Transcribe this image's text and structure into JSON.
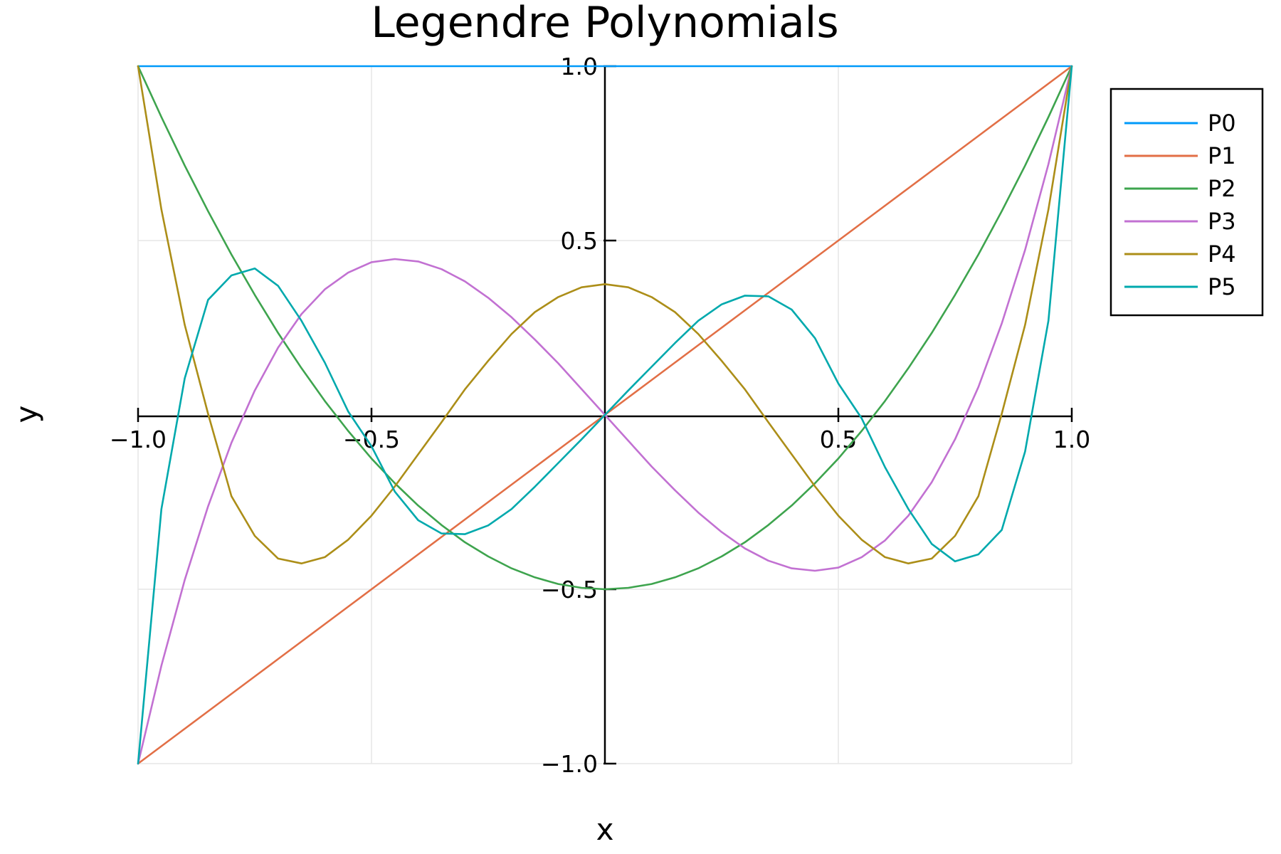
{
  "chart_data": {
    "type": "line",
    "title": "Legendre Polynomials",
    "xlabel": "x",
    "ylabel": "y",
    "xlim": [
      -1.0,
      1.0
    ],
    "ylim": [
      -1.0,
      1.0
    ],
    "x_ticks": [
      "−1.0",
      "−0.5",
      "0.5",
      "1.0"
    ],
    "y_ticks": [
      "1.0",
      "0.5",
      "−0.5",
      "−1.0"
    ],
    "grid": true,
    "legend_position": "top-right",
    "colors": [
      "#009AFA",
      "#E26F46",
      "#3EA44E",
      "#C271D2",
      "#AC8E18",
      "#00A9AD"
    ],
    "x": [
      -1.0,
      -0.95,
      -0.9,
      -0.85,
      -0.8,
      -0.75,
      -0.7,
      -0.65,
      -0.6,
      -0.55,
      -0.5,
      -0.45,
      -0.4,
      -0.35,
      -0.3,
      -0.25,
      -0.2,
      -0.15,
      -0.1,
      -0.05,
      0.0,
      0.05,
      0.1,
      0.15,
      0.2,
      0.25,
      0.3,
      0.35,
      0.4,
      0.45,
      0.5,
      0.55,
      0.6,
      0.65,
      0.7,
      0.75,
      0.8,
      0.85,
      0.9,
      0.95,
      1.0
    ],
    "series": [
      {
        "name": "P0",
        "values": [
          1,
          1,
          1,
          1,
          1,
          1,
          1,
          1,
          1,
          1,
          1,
          1,
          1,
          1,
          1,
          1,
          1,
          1,
          1,
          1,
          1,
          1,
          1,
          1,
          1,
          1,
          1,
          1,
          1,
          1,
          1,
          1,
          1,
          1,
          1,
          1,
          1,
          1,
          1,
          1,
          1
        ]
      },
      {
        "name": "P1",
        "values": [
          -1.0,
          -0.95,
          -0.9,
          -0.85,
          -0.8,
          -0.75,
          -0.7,
          -0.65,
          -0.6,
          -0.55,
          -0.5,
          -0.45,
          -0.4,
          -0.35,
          -0.3,
          -0.25,
          -0.2,
          -0.15,
          -0.1,
          -0.05,
          0.0,
          0.05,
          0.1,
          0.15,
          0.2,
          0.25,
          0.3,
          0.35,
          0.4,
          0.45,
          0.5,
          0.55,
          0.6,
          0.65,
          0.7,
          0.75,
          0.8,
          0.85,
          0.9,
          0.95,
          1.0
        ]
      },
      {
        "name": "P2",
        "values": [
          1.0,
          0.854,
          0.715,
          0.584,
          0.46,
          0.344,
          0.235,
          0.134,
          0.04,
          -0.046,
          -0.125,
          -0.196,
          -0.26,
          -0.316,
          -0.365,
          -0.406,
          -0.44,
          -0.466,
          -0.485,
          -0.496,
          -0.5,
          -0.496,
          -0.485,
          -0.466,
          -0.44,
          -0.406,
          -0.365,
          -0.316,
          -0.26,
          -0.196,
          -0.125,
          -0.046,
          0.04,
          0.134,
          0.235,
          0.344,
          0.46,
          0.584,
          0.715,
          0.854,
          1.0
        ]
      },
      {
        "name": "P3",
        "values": [
          -1.0,
          -0.719,
          -0.473,
          -0.262,
          -0.08,
          0.07,
          0.193,
          0.289,
          0.36,
          0.408,
          0.438,
          0.447,
          0.44,
          0.418,
          0.383,
          0.336,
          0.28,
          0.216,
          0.148,
          0.074,
          0.0,
          -0.074,
          -0.148,
          -0.216,
          -0.28,
          -0.336,
          -0.383,
          -0.418,
          -0.44,
          -0.447,
          -0.438,
          -0.408,
          -0.36,
          -0.289,
          -0.193,
          -0.07,
          0.08,
          0.262,
          0.473,
          0.719,
          1.0
        ]
      },
      {
        "name": "P4",
        "values": [
          1.0,
          0.589,
          0.258,
          0.003,
          -0.233,
          -0.347,
          -0.412,
          -0.426,
          -0.408,
          -0.358,
          -0.289,
          -0.205,
          -0.113,
          -0.021,
          0.073,
          0.155,
          0.232,
          0.295,
          0.338,
          0.366,
          0.375,
          0.366,
          0.338,
          0.295,
          0.232,
          0.155,
          0.073,
          -0.021,
          -0.113,
          -0.205,
          -0.289,
          -0.358,
          -0.408,
          -0.426,
          -0.412,
          -0.347,
          -0.233,
          0.003,
          0.258,
          0.589,
          1.0
        ]
      },
      {
        "name": "P5",
        "values": [
          -1.0,
          -0.27,
          0.105,
          0.33,
          0.4,
          0.42,
          0.37,
          0.27,
          0.15,
          0.01,
          -0.09,
          -0.22,
          -0.302,
          -0.34,
          -0.342,
          -0.317,
          -0.27,
          -0.206,
          -0.138,
          -0.07,
          0.0,
          0.07,
          0.138,
          0.206,
          0.27,
          0.317,
          0.342,
          0.34,
          0.302,
          0.22,
          0.09,
          -0.01,
          -0.15,
          -0.27,
          -0.37,
          -0.42,
          -0.4,
          -0.33,
          -0.105,
          0.27,
          1.0
        ]
      }
    ]
  }
}
